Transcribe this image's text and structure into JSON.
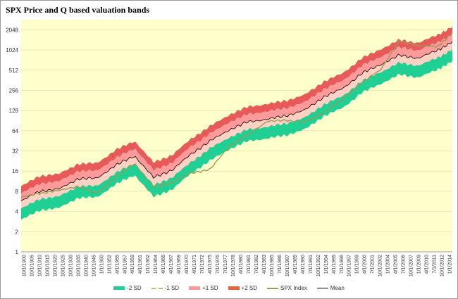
{
  "chart_data": {
    "type": "area",
    "title": "SPX Price  and Q based valuation bands",
    "xlabel": "",
    "ylabel": "",
    "y_scale": "log2",
    "ylim": [
      1,
      2900
    ],
    "y_ticks": [
      "1",
      "2",
      "4",
      "8",
      "16",
      "32",
      "64",
      "128",
      "256",
      "512",
      "1024",
      "2048"
    ],
    "x_tick_labels": [
      "10/1/1900",
      "10/1/1905",
      "10/1/1910",
      "10/1/1915",
      "10/1/1920",
      "10/1/1925",
      "10/1/1930",
      "10/1/1935",
      "10/1/1940",
      "10/1/1945",
      "1/1/1950",
      "1/1/1952",
      "4/1/1955",
      "4/1/1957",
      "4/1/1959",
      "4/1/1961",
      "1/1/1962",
      "1/1/1964",
      "4/1/1966",
      "4/1/1967",
      "4/1/1969",
      "4/1/1970",
      "4/1/1971",
      "7/1/1972",
      "4/1/1975",
      "7/1/1976",
      "7/1/1977",
      "10/1/1978",
      "4/1/1980",
      "7/1/1981",
      "7/1/1982",
      "4/1/1983",
      "10/1/1985",
      "7/1/1986",
      "10/1/1987",
      "4/1/1989",
      "4/1/1990",
      "7/1/1991",
      "10/1/1992",
      "1/1/1994",
      "4/1/1995",
      "7/1/1996",
      "10/1/1997",
      "1/1/1999",
      "4/1/2000",
      "7/1/2001",
      "10/1/2002",
      "1/1/2004",
      "4/1/2005",
      "7/1/2006",
      "10/1/2007",
      "1/1/2009",
      "4/1/2010",
      "7/1/2011",
      "10/1/2012",
      "1/1/2014"
    ],
    "x_years": [
      1900,
      1905,
      1910,
      1915,
      1920,
      1925,
      1930,
      1935,
      1940,
      1945,
      1950,
      1955,
      1960,
      1965,
      1970,
      1975,
      1980,
      1985,
      1990,
      1995,
      2000,
      2005,
      2010,
      2014
    ],
    "series": [
      {
        "name": "-2 SD",
        "color": "#1fcf94",
        "values": [
          3.0,
          4.2,
          4.5,
          6.4,
          6.5,
          10.2,
          14,
          6.6,
          8.6,
          15,
          23,
          34,
          45,
          49,
          55,
          67,
          106,
          140,
          235,
          320,
          440,
          400,
          520,
          700
        ]
      },
      {
        "name": "-1 SD",
        "color": "#ffd0c4",
        "values": [
          4.4,
          6.2,
          6.7,
          9.5,
          9.6,
          15,
          21,
          9.8,
          13,
          22,
          35,
          51,
          67,
          73,
          82,
          100,
          158,
          210,
          350,
          480,
          660,
          600,
          780,
          1040
        ]
      },
      {
        "name": "+1 SD",
        "color": "#ff9a9a",
        "values": [
          7.4,
          10.5,
          11.2,
          16,
          16.2,
          25,
          35,
          16.5,
          21.5,
          38,
          58,
          86,
          113,
          124,
          139,
          170,
          268,
          355,
          595,
          810,
          1120,
          1010,
          1320,
          1760
        ]
      },
      {
        "name": "+2 SD",
        "color": "#e85a5a",
        "values": [
          9.5,
          13.6,
          14.5,
          20.5,
          21,
          33,
          45,
          21.5,
          28,
          49,
          75,
          111,
          146,
          160,
          180,
          220,
          347,
          460,
          770,
          1050,
          1450,
          1310,
          1710,
          2280
        ]
      },
      {
        "name": "SPX Index",
        "color": "#9b9b52",
        "values": [
          6.5,
          7.5,
          8.2,
          9.5,
          7.5,
          13,
          21,
          9.2,
          11,
          15,
          17,
          38,
          56,
          88,
          92,
          86,
          120,
          190,
          330,
          520,
          1400,
          1200,
          1140,
          1830
        ]
      },
      {
        "name": "Mean",
        "color": "#000000",
        "values": [
          5.7,
          8.1,
          8.6,
          12.3,
          12.5,
          19.5,
          27,
          12.8,
          16.7,
          29,
          45,
          66,
          87,
          95,
          107,
          130,
          205,
          272,
          456,
          620,
          855,
          775,
          1010,
          1350
        ]
      }
    ]
  },
  "legend": {
    "items": [
      {
        "label": "-2 SD",
        "style": "fill",
        "color": "#1fcf94"
      },
      {
        "label": "-1 SD",
        "style": "dash",
        "color": "#a8c66c"
      },
      {
        "label": "+1 SD",
        "style": "fill",
        "color": "#ff9a9a"
      },
      {
        "label": "+2 SD",
        "style": "fill",
        "color": "#e8633a"
      },
      {
        "label": "SPX Index",
        "style": "line",
        "color": "#9b9b52"
      },
      {
        "label": "Mean",
        "style": "line",
        "color": "#000000"
      }
    ]
  },
  "colors": {
    "plot_background": "#ffffcc",
    "grid": "#d9d9b0"
  }
}
